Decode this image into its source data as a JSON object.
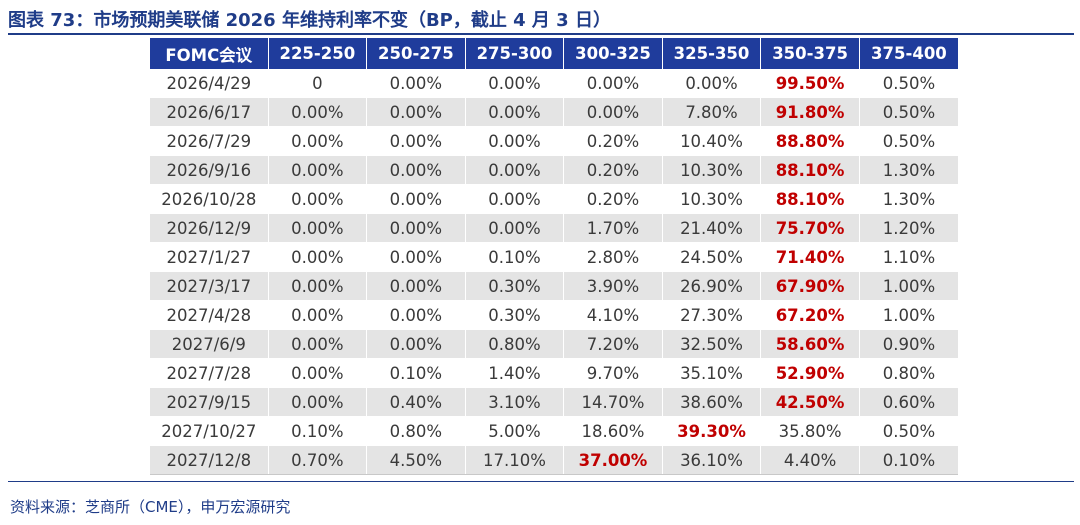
{
  "title": "图表 73：市场预期美联储 2026 年维持利率不变（BP，截止 4 月 3 日）",
  "source": "资料来源：芝商所（CME），申万宏源研究",
  "colors": {
    "header_bg": "#1f3c9c",
    "title_text": "#1f3c88",
    "highlight": "#c00000",
    "stripe": "#e4e4e4"
  },
  "table": {
    "headers": [
      "FOMC会议",
      "225-250",
      "250-275",
      "275-300",
      "300-325",
      "325-350",
      "350-375",
      "375-400"
    ],
    "rows": [
      {
        "cells": [
          "2026/4/29",
          "0",
          "0.00%",
          "0.00%",
          "0.00%",
          "0.00%",
          "99.50%",
          "0.50%"
        ],
        "highlight": 6
      },
      {
        "cells": [
          "2026/6/17",
          "0.00%",
          "0.00%",
          "0.00%",
          "0.00%",
          "7.80%",
          "91.80%",
          "0.50%"
        ],
        "highlight": 6
      },
      {
        "cells": [
          "2026/7/29",
          "0.00%",
          "0.00%",
          "0.00%",
          "0.20%",
          "10.40%",
          "88.80%",
          "0.50%"
        ],
        "highlight": 6
      },
      {
        "cells": [
          "2026/9/16",
          "0.00%",
          "0.00%",
          "0.00%",
          "0.20%",
          "10.30%",
          "88.10%",
          "1.30%"
        ],
        "highlight": 6
      },
      {
        "cells": [
          "2026/10/28",
          "0.00%",
          "0.00%",
          "0.00%",
          "0.20%",
          "10.30%",
          "88.10%",
          "1.30%"
        ],
        "highlight": 6
      },
      {
        "cells": [
          "2026/12/9",
          "0.00%",
          "0.00%",
          "0.00%",
          "1.70%",
          "21.40%",
          "75.70%",
          "1.20%"
        ],
        "highlight": 6
      },
      {
        "cells": [
          "2027/1/27",
          "0.00%",
          "0.00%",
          "0.10%",
          "2.80%",
          "24.50%",
          "71.40%",
          "1.10%"
        ],
        "highlight": 6
      },
      {
        "cells": [
          "2027/3/17",
          "0.00%",
          "0.00%",
          "0.30%",
          "3.90%",
          "26.90%",
          "67.90%",
          "1.00%"
        ],
        "highlight": 6
      },
      {
        "cells": [
          "2027/4/28",
          "0.00%",
          "0.00%",
          "0.30%",
          "4.10%",
          "27.30%",
          "67.20%",
          "1.00%"
        ],
        "highlight": 6
      },
      {
        "cells": [
          "2027/6/9",
          "0.00%",
          "0.00%",
          "0.80%",
          "7.20%",
          "32.50%",
          "58.60%",
          "0.90%"
        ],
        "highlight": 6
      },
      {
        "cells": [
          "2027/7/28",
          "0.00%",
          "0.10%",
          "1.40%",
          "9.70%",
          "35.10%",
          "52.90%",
          "0.80%"
        ],
        "highlight": 6
      },
      {
        "cells": [
          "2027/9/15",
          "0.00%",
          "0.40%",
          "3.10%",
          "14.70%",
          "38.60%",
          "42.50%",
          "0.60%"
        ],
        "highlight": 6
      },
      {
        "cells": [
          "2027/10/27",
          "0.10%",
          "0.80%",
          "5.00%",
          "18.60%",
          "39.30%",
          "35.80%",
          "0.50%"
        ],
        "highlight": 5
      },
      {
        "cells": [
          "2027/12/8",
          "0.70%",
          "4.50%",
          "17.10%",
          "37.00%",
          "36.10%",
          "4.40%",
          "0.10%"
        ],
        "highlight": 4
      }
    ]
  }
}
